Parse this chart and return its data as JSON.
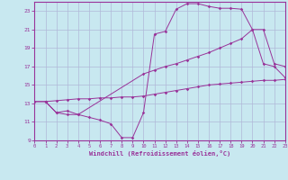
{
  "background_color": "#c8e8f0",
  "grid_color": "#b0b8d8",
  "line_color": "#993399",
  "xlabel": "Windchill (Refroidissement éolien,°C)",
  "xlim": [
    0,
    23
  ],
  "ylim": [
    9,
    24
  ],
  "yticks": [
    9,
    11,
    13,
    15,
    17,
    19,
    21,
    23
  ],
  "xticks": [
    0,
    1,
    2,
    3,
    4,
    5,
    6,
    7,
    8,
    9,
    10,
    11,
    12,
    13,
    14,
    15,
    16,
    17,
    18,
    19,
    20,
    21,
    22,
    23
  ],
  "line_zigzag_x": [
    1,
    2,
    3,
    4,
    5,
    6,
    7,
    8,
    9,
    10,
    11,
    12,
    13,
    14,
    15,
    16,
    17,
    18,
    19,
    20,
    21,
    22,
    23
  ],
  "line_zigzag_y": [
    13.2,
    12.0,
    12.2,
    11.8,
    11.5,
    11.2,
    10.8,
    9.3,
    9.3,
    12.0,
    20.5,
    20.8,
    23.2,
    23.8,
    23.8,
    23.5,
    23.3,
    23.3,
    23.2,
    21.0,
    17.3,
    17.0,
    15.8
  ],
  "line_diag_x": [
    0,
    1,
    2,
    3,
    4,
    10,
    11,
    12,
    13,
    14,
    15,
    16,
    17,
    18,
    19,
    20,
    21,
    22,
    23
  ],
  "line_diag_y": [
    13.2,
    13.2,
    12.0,
    11.8,
    11.8,
    16.2,
    16.6,
    17.0,
    17.3,
    17.7,
    18.1,
    18.5,
    19.0,
    19.5,
    20.0,
    21.0,
    21.0,
    17.3,
    17.0
  ],
  "line_flat_x": [
    0,
    1,
    2,
    3,
    4,
    5,
    6,
    7,
    8,
    9,
    10,
    11,
    12,
    13,
    14,
    15,
    16,
    17,
    18,
    19,
    20,
    21,
    22,
    23
  ],
  "line_flat_y": [
    13.2,
    13.2,
    13.3,
    13.4,
    13.5,
    13.5,
    13.6,
    13.6,
    13.7,
    13.7,
    13.8,
    14.0,
    14.2,
    14.4,
    14.6,
    14.8,
    15.0,
    15.1,
    15.2,
    15.3,
    15.4,
    15.5,
    15.5,
    15.6
  ]
}
